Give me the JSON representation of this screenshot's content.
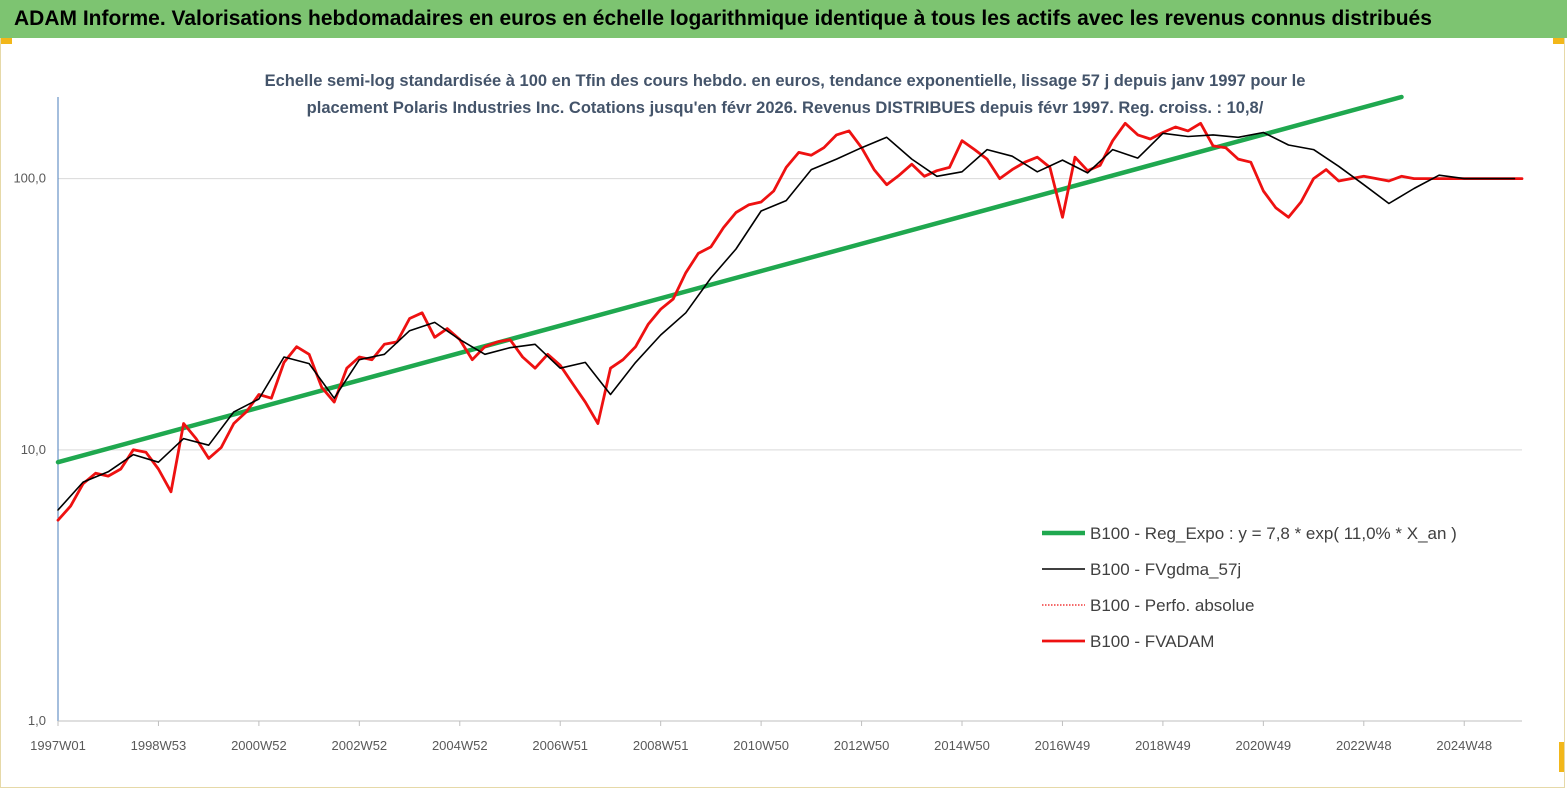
{
  "header": {
    "title": "ADAM Informe. Valorisations hebdomadaires en euros en échelle logarithmique identique à tous les actifs avec les revenus connus distribués"
  },
  "colors": {
    "header_bg": "#7dc471",
    "accent": "#f2b71a",
    "reg_line": "#1fa84f",
    "fvgdma_line": "#000000",
    "fvadam_line": "#ee1111",
    "perfo_line": "#ee1111"
  },
  "chart_data": {
    "type": "line",
    "title": "Echelle semi-log standardisée à 100 en Tfin des cours hebdo. en euros, tendance exponentielle, lissage 57 j depuis janv 1997 pour le placement Polaris Industries Inc. Cotations jusqu'en févr 2026. Revenus DISTRIBUES depuis févr 1997. Reg. croiss. : 10,8/",
    "title_lines": [
      "Echelle semi-log standardisée à 100 en Tfin des cours hebdo. en euros, tendance exponentielle, lissage 57 j depuis janv 1997 pour le",
      "placement Polaris Industries Inc. Cotations jusqu'en févr 2026. Revenus DISTRIBUES depuis févr 1997. Reg. croiss. : 10,8/"
    ],
    "y_scale": "log",
    "ylim": [
      1,
      200
    ],
    "y_ticks": [
      1,
      10,
      100
    ],
    "y_tick_labels": [
      "1,0",
      "10,0",
      "100,0"
    ],
    "xlim": [
      1997.0,
      2026.15
    ],
    "x_ticks": [
      1997.0,
      1999.0,
      2001.0,
      2003.0,
      2005.0,
      2007.0,
      2009.0,
      2011.0,
      2013.0,
      2015.0,
      2017.0,
      2019.0,
      2021.0,
      2023.0,
      2025.0
    ],
    "x_tick_labels": [
      "1997W01",
      "1998W53",
      "2000W52",
      "2002W52",
      "2004W52",
      "2006W51",
      "2008W51",
      "2010W50",
      "2012W50",
      "2014W50",
      "2016W49",
      "2018W49",
      "2020W49",
      "2022W48",
      "2024W48"
    ],
    "grid": true,
    "legend_position": "bottom-right",
    "series": [
      {
        "key": "reg",
        "name": "B100 - Reg_Expo : y = 7,8 * exp( 11,0% *  X_an )",
        "style": "thick",
        "x": [
          1997.0,
          2023.75
        ],
        "y": [
          9.0,
          200
        ]
      },
      {
        "key": "fvgdma",
        "name": "B100 - FVgdma_57j",
        "style": "thin",
        "x": [
          1997.0,
          1997.5,
          1998.0,
          1998.5,
          1999.0,
          1999.5,
          2000.0,
          2000.5,
          2001.0,
          2001.5,
          2002.0,
          2002.5,
          2003.0,
          2003.5,
          2004.0,
          2004.5,
          2005.0,
          2005.5,
          2006.0,
          2006.5,
          2007.0,
          2007.5,
          2008.0,
          2008.5,
          2009.0,
          2009.5,
          2010.0,
          2010.5,
          2011.0,
          2011.5,
          2012.0,
          2012.5,
          2013.0,
          2013.5,
          2014.0,
          2014.5,
          2015.0,
          2015.5,
          2016.0,
          2016.5,
          2017.0,
          2017.5,
          2018.0,
          2018.5,
          2019.0,
          2019.5,
          2020.0,
          2020.5,
          2021.0,
          2021.5,
          2022.0,
          2022.5,
          2023.0,
          2023.5,
          2024.0,
          2024.5,
          2025.0,
          2025.5,
          2026.0
        ],
        "y": [
          6.0,
          7.6,
          8.3,
          9.6,
          9.0,
          11.0,
          10.4,
          13.8,
          15.4,
          22.0,
          20.8,
          15.5,
          21.5,
          22.5,
          27.5,
          29.5,
          25.5,
          22.5,
          23.8,
          24.5,
          20.0,
          21.0,
          16.0,
          21.0,
          26.5,
          32.0,
          43.0,
          55.0,
          76.0,
          83.0,
          108.0,
          118.0,
          130.0,
          142.0,
          118.0,
          102.0,
          106.0,
          128.0,
          121.0,
          106.0,
          117.0,
          105.0,
          128.0,
          119.0,
          147.0,
          143.0,
          145.0,
          142.0,
          148.0,
          133.0,
          128.0,
          111.0,
          95.0,
          81.0,
          92.0,
          103.0,
          100.0,
          100.0,
          100.0
        ]
      },
      {
        "key": "perfo",
        "name": "B100 - Perfo. absolue",
        "style": "dotted",
        "x": [],
        "y": []
      },
      {
        "key": "fvadam",
        "name": "B100 - FVADAM",
        "style": "thick",
        "x": [
          1997.0,
          1997.25,
          1997.5,
          1997.75,
          1998.0,
          1998.25,
          1998.5,
          1998.75,
          1999.0,
          1999.25,
          1999.5,
          1999.75,
          2000.0,
          2000.25,
          2000.5,
          2000.75,
          2001.0,
          2001.25,
          2001.5,
          2001.75,
          2002.0,
          2002.25,
          2002.5,
          2002.75,
          2003.0,
          2003.25,
          2003.5,
          2003.75,
          2004.0,
          2004.25,
          2004.5,
          2004.75,
          2005.0,
          2005.25,
          2005.5,
          2005.75,
          2006.0,
          2006.25,
          2006.5,
          2006.75,
          2007.0,
          2007.25,
          2007.5,
          2007.75,
          2008.0,
          2008.25,
          2008.5,
          2008.75,
          2009.0,
          2009.25,
          2009.5,
          2009.75,
          2010.0,
          2010.25,
          2010.5,
          2010.75,
          2011.0,
          2011.25,
          2011.5,
          2011.75,
          2012.0,
          2012.25,
          2012.5,
          2012.75,
          2013.0,
          2013.25,
          2013.5,
          2013.75,
          2014.0,
          2014.25,
          2014.5,
          2014.75,
          2015.0,
          2015.25,
          2015.5,
          2015.75,
          2016.0,
          2016.25,
          2016.5,
          2016.75,
          2017.0,
          2017.25,
          2017.5,
          2017.75,
          2018.0,
          2018.25,
          2018.5,
          2018.75,
          2019.0,
          2019.25,
          2019.5,
          2019.75,
          2020.0,
          2020.25,
          2020.5,
          2020.75,
          2021.0,
          2021.25,
          2021.5,
          2021.75,
          2022.0,
          2022.25,
          2022.5,
          2022.75,
          2023.0,
          2023.25,
          2023.5,
          2023.75,
          2024.0,
          2024.25,
          2024.5,
          2024.75,
          2025.0,
          2025.25,
          2025.5,
          2025.75,
          2026.0,
          2026.15
        ],
        "y": [
          5.5,
          6.2,
          7.5,
          8.2,
          8.0,
          8.5,
          10.0,
          9.8,
          8.5,
          7.0,
          12.5,
          11.0,
          9.3,
          10.2,
          12.5,
          13.8,
          16.0,
          15.5,
          21.0,
          24.0,
          22.5,
          17.0,
          15.0,
          20.0,
          22.0,
          21.5,
          24.5,
          25.0,
          30.5,
          32.0,
          26.0,
          28.0,
          25.5,
          21.5,
          24.0,
          25.0,
          25.5,
          22.0,
          20.0,
          22.5,
          20.5,
          17.5,
          15.0,
          12.5,
          20.0,
          21.5,
          24.0,
          29.0,
          33.0,
          36.0,
          45.0,
          53.0,
          56.0,
          66.0,
          75.0,
          80.0,
          82.0,
          90.0,
          110.0,
          125.0,
          122.0,
          130.0,
          145.0,
          150.0,
          130.0,
          108.0,
          95.0,
          103.0,
          113.0,
          102.0,
          107.0,
          110.0,
          138.0,
          128.0,
          118.0,
          100.0,
          108.0,
          115.0,
          120.0,
          110.0,
          72.0,
          120.0,
          107.0,
          112.0,
          138.0,
          160.0,
          145.0,
          140.0,
          148.0,
          155.0,
          150.0,
          160.0,
          132.0,
          130.0,
          118.0,
          115.0,
          90.0,
          78.0,
          72.0,
          82.0,
          100.0,
          108.0,
          98.0,
          100.0,
          102.0,
          100.0,
          98.0,
          102.0,
          100.0,
          100.0,
          100.0,
          100.0,
          100.0,
          100.0,
          100.0,
          100.0,
          100.0,
          100.0
        ]
      }
    ]
  }
}
